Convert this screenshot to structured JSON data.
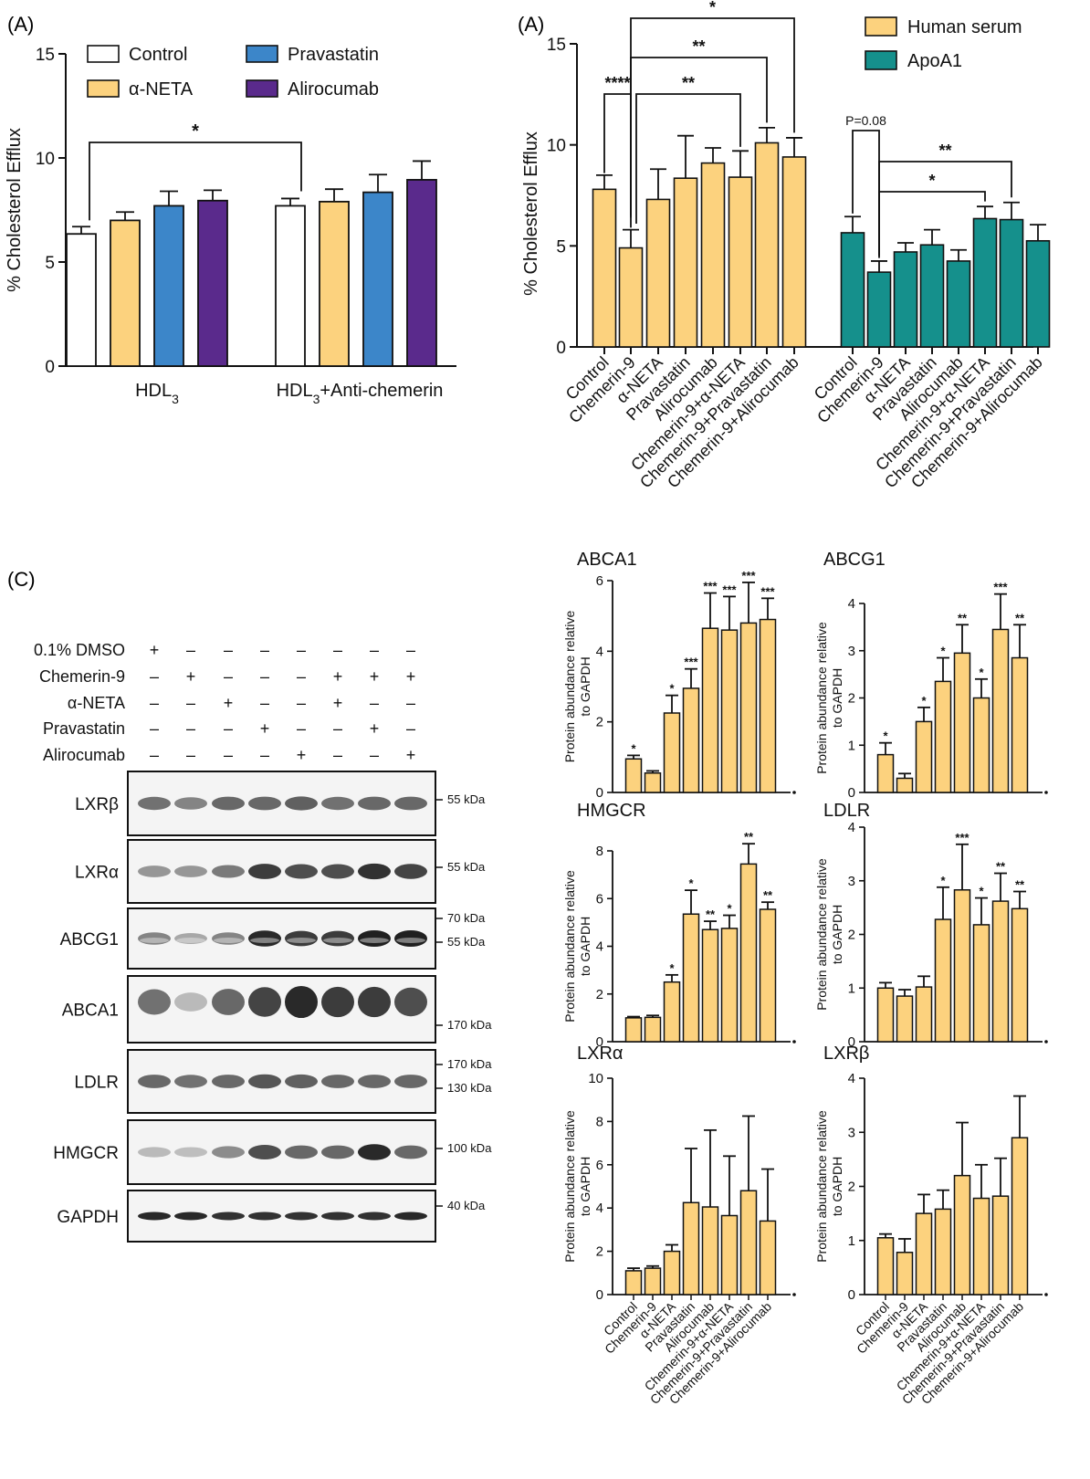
{
  "panel_labels": {
    "a1": "(A)",
    "a2": "(A)",
    "c": "(C)"
  },
  "colors": {
    "control": "#ffffff",
    "neta": "#fcd27e",
    "prava": "#3c86c9",
    "aliro": "#5a2a8c",
    "human_serum": "#fcd27e",
    "apoa1": "#15908c",
    "axis": "#111111"
  },
  "chart_data": [
    {
      "id": "panelA1",
      "type": "bar",
      "title": "",
      "ylabel": "% Cholesterol Efflux",
      "ylim": [
        0,
        15
      ],
      "yticks": [
        "0",
        "5",
        "10",
        "15"
      ],
      "groups": [
        "HDL₃",
        "HDL₃+Anti-chemerin"
      ],
      "group_text": [
        {
          "main": "HDL",
          "sub": "3",
          "tail": ""
        },
        {
          "main": "HDL",
          "sub": "3",
          "tail": "+Anti-chemerin"
        }
      ],
      "legend": [
        "Control",
        "α-NETA",
        "Pravastatin",
        "Alirocumab"
      ],
      "series": [
        {
          "name": "Control",
          "values": [
            6.35,
            7.7
          ],
          "errors": [
            0.35,
            0.35
          ]
        },
        {
          "name": "α-NETA",
          "values": [
            7.0,
            7.9
          ],
          "errors": [
            0.4,
            0.6
          ]
        },
        {
          "name": "Pravastatin",
          "values": [
            7.7,
            8.35
          ],
          "errors": [
            0.7,
            0.85
          ]
        },
        {
          "name": "Alirocumab",
          "values": [
            7.95,
            8.95
          ],
          "errors": [
            0.5,
            0.9
          ]
        }
      ],
      "sig": [
        {
          "label": "*",
          "from": "HDL₃ Control",
          "to": "HDL₃+Anti-chemerin Control"
        }
      ]
    },
    {
      "id": "panelA2",
      "type": "bar",
      "title": "",
      "ylabel": "% Cholesterol Efflux",
      "ylim": [
        0,
        15
      ],
      "yticks": [
        "0",
        "5",
        "10",
        "15"
      ],
      "categories": [
        "Control",
        "Chemerin-9",
        "α-NETA",
        "Pravastatin",
        "Alirocumab",
        "Chemerin-9+α-NETA",
        "Chemerin-9+Pravastatin",
        "Chemerin-9+Alirocumab"
      ],
      "legend": [
        "Human serum",
        "ApoA1"
      ],
      "series": [
        {
          "name": "Human serum",
          "values": [
            7.8,
            4.9,
            7.3,
            8.35,
            9.1,
            8.4,
            10.1,
            9.4
          ],
          "errors": [
            0.7,
            0.9,
            1.5,
            2.1,
            0.75,
            1.3,
            0.75,
            0.95
          ]
        },
        {
          "name": "ApoA1",
          "values": [
            5.65,
            3.7,
            4.7,
            5.05,
            4.25,
            6.35,
            6.3,
            5.25
          ],
          "errors": [
            0.8,
            0.55,
            0.45,
            0.75,
            0.55,
            0.6,
            0.85,
            0.8
          ]
        }
      ],
      "sig": [
        {
          "series": "Human serum",
          "label": "****",
          "from": "Control",
          "to": "Chemerin-9"
        },
        {
          "series": "Human serum",
          "label": "**",
          "from": "Chemerin-9",
          "to": "Chemerin-9+α-NETA"
        },
        {
          "series": "Human serum",
          "label": "**",
          "from": "Chemerin-9",
          "to": "Chemerin-9+Pravastatin"
        },
        {
          "series": "Human serum",
          "label": "*",
          "from": "Chemerin-9",
          "to": "Chemerin-9+Alirocumab"
        },
        {
          "series": "ApoA1",
          "label": "P=0.08",
          "from": "Control",
          "to": "Chemerin-9"
        },
        {
          "series": "ApoA1",
          "label": "*",
          "from": "Chemerin-9",
          "to": "Chemerin-9+α-NETA"
        },
        {
          "series": "ApoA1",
          "label": "**",
          "from": "Chemerin-9",
          "to": "Chemerin-9+Pravastatin"
        }
      ]
    },
    {
      "id": "abca1",
      "type": "bar",
      "title": "ABCA1",
      "ylabel": "Protein abundance relative to GAPDH",
      "ylabel_lines": [
        "Protein abundance relative",
        "to GAPDH"
      ],
      "ylim": [
        0,
        6
      ],
      "yticks": [
        "0",
        "2",
        "4",
        "6"
      ],
      "values": [
        0.95,
        0.55,
        2.25,
        2.95,
        4.65,
        4.6,
        4.8,
        4.9
      ],
      "errors": [
        0.1,
        0.06,
        0.5,
        0.55,
        1.0,
        0.95,
        1.15,
        0.6
      ],
      "stars": [
        "*",
        "",
        "*",
        "***",
        "***",
        "***",
        "***",
        "***"
      ]
    },
    {
      "id": "abcg1",
      "type": "bar",
      "title": "ABCG1",
      "ylabel": "Protein abundance relative to GAPDH",
      "ylabel_lines": [
        "Protein abundance relative",
        "to GAPDH"
      ],
      "ylim": [
        0,
        4
      ],
      "yticks": [
        "0",
        "1",
        "2",
        "3",
        "4"
      ],
      "values": [
        0.8,
        0.3,
        1.5,
        2.35,
        2.95,
        2.0,
        3.45,
        2.85
      ],
      "errors": [
        0.25,
        0.1,
        0.3,
        0.5,
        0.6,
        0.4,
        0.75,
        0.7
      ],
      "stars": [
        "*",
        "",
        "*",
        "*",
        "**",
        "*",
        "***",
        "**"
      ]
    },
    {
      "id": "hmgcr",
      "type": "bar",
      "title": "HMGCR",
      "ylabel": "Protein abundance relative to GAPDH",
      "ylabel_lines": [
        "Protein abundance relative",
        "to GAPDH"
      ],
      "ylim": [
        0,
        8
      ],
      "yticks": [
        "0",
        "2",
        "4",
        "6",
        "8"
      ],
      "values": [
        1.0,
        1.02,
        2.5,
        5.35,
        4.7,
        4.75,
        7.45,
        5.55
      ],
      "errors": [
        0.05,
        0.08,
        0.3,
        1.0,
        0.35,
        0.55,
        0.85,
        0.3
      ],
      "stars": [
        "",
        "",
        "*",
        "*",
        "**",
        "*",
        "**",
        "**"
      ]
    },
    {
      "id": "ldlr",
      "type": "bar",
      "title": "LDLR",
      "ylabel": "Protein abundance relative to GAPDH",
      "ylabel_lines": [
        "Protein abundance relative",
        "to GAPDH"
      ],
      "ylim": [
        0,
        4
      ],
      "yticks": [
        "0",
        "1",
        "2",
        "3",
        "4"
      ],
      "values": [
        1.0,
        0.85,
        1.02,
        2.28,
        2.83,
        2.18,
        2.62,
        2.48
      ],
      "errors": [
        0.1,
        0.12,
        0.2,
        0.6,
        0.85,
        0.5,
        0.52,
        0.32
      ],
      "stars": [
        "",
        "",
        "",
        "*",
        "***",
        "*",
        "**",
        "**"
      ]
    },
    {
      "id": "lxra",
      "type": "bar",
      "title": "LXRα",
      "ylabel": "Protein abundance relative to GAPDH",
      "ylabel_lines": [
        "Protein abundance relative",
        "to GAPDH"
      ],
      "ylim": [
        0,
        10
      ],
      "yticks": [
        "0",
        "2",
        "4",
        "6",
        "8",
        "10"
      ],
      "values": [
        1.1,
        1.22,
        2.0,
        4.25,
        4.05,
        3.65,
        4.8,
        3.4
      ],
      "errors": [
        0.12,
        0.1,
        0.3,
        2.5,
        3.55,
        2.75,
        3.45,
        2.4
      ],
      "stars": [
        "",
        "",
        "",
        "",
        "",
        "",
        "",
        ""
      ]
    },
    {
      "id": "lxrb",
      "type": "bar",
      "title": "LXRβ",
      "ylabel": "Protein abundance relative to GAPDH",
      "ylabel_lines": [
        "Protein abundance relative",
        "to GAPDH"
      ],
      "ylim": [
        0,
        4
      ],
      "yticks": [
        "0",
        "1",
        "2",
        "3",
        "4"
      ],
      "values": [
        1.05,
        0.78,
        1.5,
        1.58,
        2.2,
        1.78,
        1.82,
        2.9
      ],
      "errors": [
        0.07,
        0.25,
        0.35,
        0.35,
        0.98,
        0.62,
        0.7,
        0.77
      ],
      "stars": [
        "",
        "",
        "",
        "",
        "",
        "",
        "",
        ""
      ],
      "categories": [
        "Control",
        "Chemerin-9",
        "α-NETA",
        "Pravastatin",
        "Alirocumab",
        "Chemerin-9+α-NETA",
        "Chemerin-9+Pravastatin",
        "Chemerin-9+Alirocumab"
      ]
    }
  ],
  "western_blot": {
    "conditions": [
      {
        "label": "0.1% DMSO",
        "signs": [
          "+",
          "–",
          "–",
          "–",
          "–",
          "–",
          "–",
          "–"
        ]
      },
      {
        "label": "Chemerin-9",
        "signs": [
          "–",
          "+",
          "–",
          "–",
          "–",
          "+",
          "+",
          "+"
        ]
      },
      {
        "label": "α-NETA",
        "signs": [
          "–",
          "–",
          "+",
          "–",
          "–",
          "+",
          "–",
          "–"
        ]
      },
      {
        "label": "Pravastatin",
        "signs": [
          "–",
          "–",
          "–",
          "+",
          "–",
          "–",
          "+",
          "–"
        ]
      },
      {
        "label": "Alirocumab",
        "signs": [
          "–",
          "–",
          "–",
          "–",
          "+",
          "–",
          "–",
          "+"
        ]
      }
    ],
    "blots": [
      {
        "name": "LXRβ",
        "markers": [
          "55 kDa"
        ],
        "intensity": [
          0.55,
          0.45,
          0.6,
          0.6,
          0.65,
          0.55,
          0.6,
          0.6
        ]
      },
      {
        "name": "LXRα",
        "markers": [
          "55 kDa"
        ],
        "intensity": [
          0.35,
          0.35,
          0.5,
          0.85,
          0.75,
          0.75,
          0.9,
          0.8
        ]
      },
      {
        "name": "ABCG1",
        "markers": [
          "70 kDa",
          "55 kDa"
        ],
        "intensity": [
          0.45,
          0.25,
          0.45,
          0.95,
          0.85,
          0.85,
          1.0,
          1.0
        ]
      },
      {
        "name": "ABCA1",
        "markers": [
          "170 kDa"
        ],
        "intensity": [
          0.55,
          0.15,
          0.6,
          0.8,
          0.95,
          0.85,
          0.85,
          0.75
        ]
      },
      {
        "name": "LDLR",
        "markers": [
          "170 kDa",
          "130 kDa"
        ],
        "intensity": [
          0.6,
          0.55,
          0.6,
          0.7,
          0.65,
          0.6,
          0.6,
          0.6
        ]
      },
      {
        "name": "HMGCR",
        "markers": [
          "100 kDa"
        ],
        "intensity": [
          0.15,
          0.12,
          0.4,
          0.75,
          0.6,
          0.6,
          0.95,
          0.6
        ]
      },
      {
        "name": "GAPDH",
        "markers": [
          "40 kDa"
        ],
        "intensity": [
          0.95,
          0.95,
          0.9,
          0.9,
          0.9,
          0.9,
          0.9,
          0.95
        ]
      }
    ]
  }
}
